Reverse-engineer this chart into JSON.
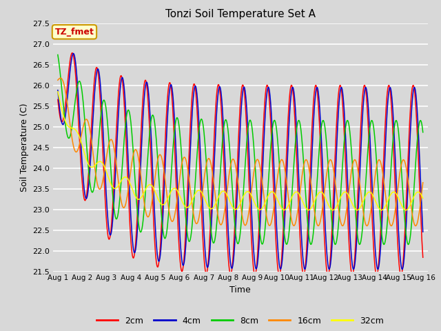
{
  "title": "Tonzi Soil Temperature Set A",
  "xlabel": "Time",
  "ylabel": "Soil Temperature (C)",
  "ylim": [
    21.5,
    27.5
  ],
  "annotation_text": "TZ_fmet",
  "annotation_color": "#cc0000",
  "annotation_bg": "#ffffcc",
  "annotation_border": "#cc9900",
  "xtick_labels": [
    "Aug 1",
    "Aug 2",
    "Aug 3",
    "Aug 4",
    "Aug 5",
    "Aug 6",
    "Aug 7",
    "Aug 8",
    "Aug 9",
    "Aug 10",
    "Aug 11",
    "Aug 12",
    "Aug 13",
    "Aug 14",
    "Aug 15",
    "Aug 16"
  ],
  "colors": {
    "2cm": "#ff0000",
    "4cm": "#0000cc",
    "8cm": "#00cc00",
    "16cm": "#ff8800",
    "32cm": "#ffff00"
  },
  "background_color": "#d8d8d8",
  "plot_bg_color": "#d8d8d8",
  "grid_color": "#ffffff"
}
